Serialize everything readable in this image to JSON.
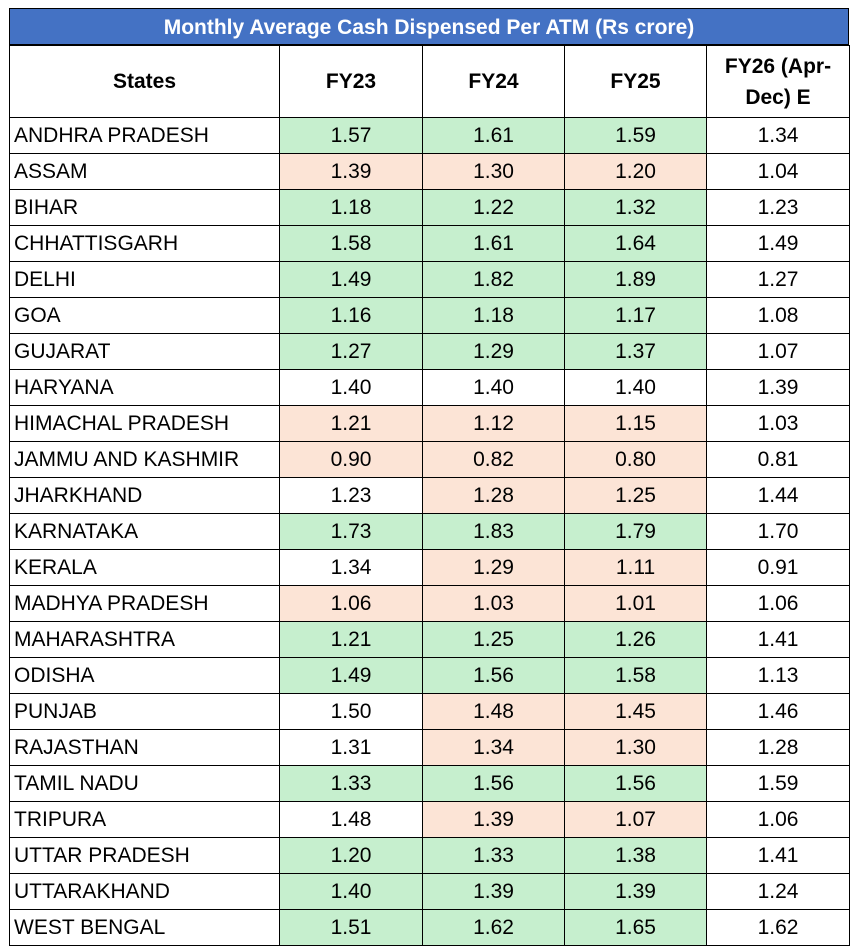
{
  "chart_data": {
    "type": "table",
    "title": "Monthly Average Cash Dispensed Per ATM (Rs crore)",
    "columns": [
      "States",
      "FY23",
      "FY24",
      "FY25",
      "FY26 (Apr-Dec) E"
    ],
    "colors": {
      "header": "#4472c4",
      "increase": "#c6efce",
      "decrease": "#fce4d6"
    },
    "rows": [
      {
        "state": "ANDHRA PRADESH",
        "values": [
          "1.57",
          "1.61",
          "1.59",
          "1.34"
        ],
        "shade": [
          "hi",
          "hi",
          "hi",
          ""
        ]
      },
      {
        "state": "ASSAM",
        "values": [
          "1.39",
          "1.30",
          "1.20",
          "1.04"
        ],
        "shade": [
          "lo",
          "lo",
          "lo",
          ""
        ]
      },
      {
        "state": "BIHAR",
        "values": [
          "1.18",
          "1.22",
          "1.32",
          "1.23"
        ],
        "shade": [
          "hi",
          "hi",
          "hi",
          ""
        ]
      },
      {
        "state": "CHHATTISGARH",
        "values": [
          "1.58",
          "1.61",
          "1.64",
          "1.49"
        ],
        "shade": [
          "hi",
          "hi",
          "hi",
          ""
        ]
      },
      {
        "state": "DELHI",
        "values": [
          "1.49",
          "1.82",
          "1.89",
          "1.27"
        ],
        "shade": [
          "hi",
          "hi",
          "hi",
          ""
        ]
      },
      {
        "state": "GOA",
        "values": [
          "1.16",
          "1.18",
          "1.17",
          "1.08"
        ],
        "shade": [
          "hi",
          "hi",
          "hi",
          ""
        ]
      },
      {
        "state": "GUJARAT",
        "values": [
          "1.27",
          "1.29",
          "1.37",
          "1.07"
        ],
        "shade": [
          "hi",
          "hi",
          "hi",
          ""
        ]
      },
      {
        "state": "HARYANA",
        "values": [
          "1.40",
          "1.40",
          "1.40",
          "1.39"
        ],
        "shade": [
          "",
          "",
          "",
          ""
        ]
      },
      {
        "state": "HIMACHAL PRADESH",
        "values": [
          "1.21",
          "1.12",
          "1.15",
          "1.03"
        ],
        "shade": [
          "lo",
          "lo",
          "lo",
          ""
        ]
      },
      {
        "state": "JAMMU AND KASHMIR",
        "values": [
          "0.90",
          "0.82",
          "0.80",
          "0.81"
        ],
        "shade": [
          "lo",
          "lo",
          "lo",
          ""
        ]
      },
      {
        "state": "JHARKHAND",
        "values": [
          "1.23",
          "1.28",
          "1.25",
          "1.44"
        ],
        "shade": [
          "",
          "lo",
          "lo",
          ""
        ]
      },
      {
        "state": "KARNATAKA",
        "values": [
          "1.73",
          "1.83",
          "1.79",
          "1.70"
        ],
        "shade": [
          "hi",
          "hi",
          "hi",
          ""
        ]
      },
      {
        "state": "KERALA",
        "values": [
          "1.34",
          "1.29",
          "1.11",
          "0.91"
        ],
        "shade": [
          "",
          "lo",
          "lo",
          ""
        ]
      },
      {
        "state": "MADHYA PRADESH",
        "values": [
          "1.06",
          "1.03",
          "1.01",
          "1.06"
        ],
        "shade": [
          "lo",
          "lo",
          "lo",
          ""
        ]
      },
      {
        "state": "MAHARASHTRA",
        "values": [
          "1.21",
          "1.25",
          "1.26",
          "1.41"
        ],
        "shade": [
          "hi",
          "hi",
          "hi",
          ""
        ]
      },
      {
        "state": "ODISHA",
        "values": [
          "1.49",
          "1.56",
          "1.58",
          "1.13"
        ],
        "shade": [
          "hi",
          "hi",
          "hi",
          ""
        ]
      },
      {
        "state": "PUNJAB",
        "values": [
          "1.50",
          "1.48",
          "1.45",
          "1.46"
        ],
        "shade": [
          "",
          "lo",
          "lo",
          ""
        ]
      },
      {
        "state": "RAJASTHAN",
        "values": [
          "1.31",
          "1.34",
          "1.30",
          "1.28"
        ],
        "shade": [
          "",
          "lo",
          "lo",
          ""
        ]
      },
      {
        "state": "TAMIL NADU",
        "values": [
          "1.33",
          "1.56",
          "1.56",
          "1.59"
        ],
        "shade": [
          "hi",
          "hi",
          "hi",
          ""
        ]
      },
      {
        "state": "TRIPURA",
        "values": [
          "1.48",
          "1.39",
          "1.07",
          "1.06"
        ],
        "shade": [
          "",
          "lo",
          "lo",
          ""
        ]
      },
      {
        "state": "UTTAR PRADESH",
        "values": [
          "1.20",
          "1.33",
          "1.38",
          "1.41"
        ],
        "shade": [
          "hi",
          "hi",
          "hi",
          ""
        ]
      },
      {
        "state": "UTTARAKHAND",
        "values": [
          "1.40",
          "1.39",
          "1.39",
          "1.24"
        ],
        "shade": [
          "hi",
          "hi",
          "hi",
          ""
        ]
      },
      {
        "state": "WEST BENGAL",
        "values": [
          "1.51",
          "1.62",
          "1.65",
          "1.62"
        ],
        "shade": [
          "hi",
          "hi",
          "hi",
          ""
        ]
      }
    ]
  }
}
